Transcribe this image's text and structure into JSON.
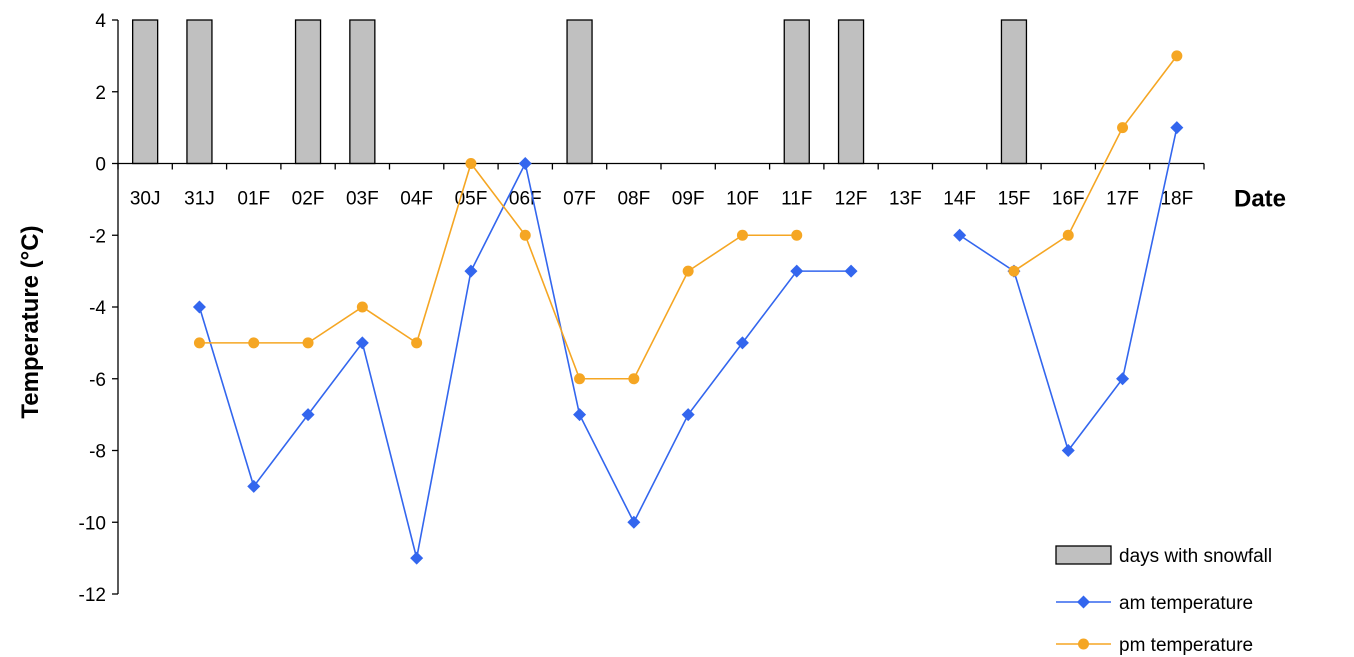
{
  "chart_data": {
    "type": "line",
    "title": "",
    "xlabel": "Date",
    "ylabel": "Temperature (°C)",
    "ylim": [
      -12,
      4
    ],
    "yticks": [
      4,
      2,
      0,
      -2,
      -4,
      -6,
      -8,
      -10,
      -12
    ],
    "grid": false,
    "legend_position": "bottom-right",
    "categories": [
      "30J",
      "31J",
      "01F",
      "02F",
      "03F",
      "04F",
      "05F",
      "06F",
      "07F",
      "08F",
      "09F",
      "10F",
      "11F",
      "12F",
      "13F",
      "14F",
      "15F",
      "16F",
      "17F",
      "18F"
    ],
    "series": [
      {
        "name": "days with snowfall",
        "kind": "bar",
        "color": "#c0c0c0",
        "values": [
          4,
          4,
          null,
          4,
          4,
          null,
          null,
          null,
          4,
          null,
          null,
          null,
          4,
          4,
          null,
          null,
          4,
          null,
          null,
          null
        ]
      },
      {
        "name": "am temperature",
        "kind": "line",
        "marker": "diamond",
        "color": "#3366ee",
        "values": [
          null,
          -4,
          -9,
          -7,
          -5,
          -11,
          -3,
          0,
          -7,
          -10,
          -7,
          -5,
          -3,
          -3,
          null,
          -2,
          -3,
          -8,
          -6,
          1
        ]
      },
      {
        "name": "pm temperature",
        "kind": "line",
        "marker": "circle",
        "color": "#f5a623",
        "values": [
          null,
          -5,
          -5,
          -5,
          -4,
          -5,
          0,
          -2,
          -6,
          -6,
          -3,
          -2,
          -2,
          null,
          null,
          null,
          -3,
          -2,
          1,
          3
        ]
      }
    ]
  }
}
